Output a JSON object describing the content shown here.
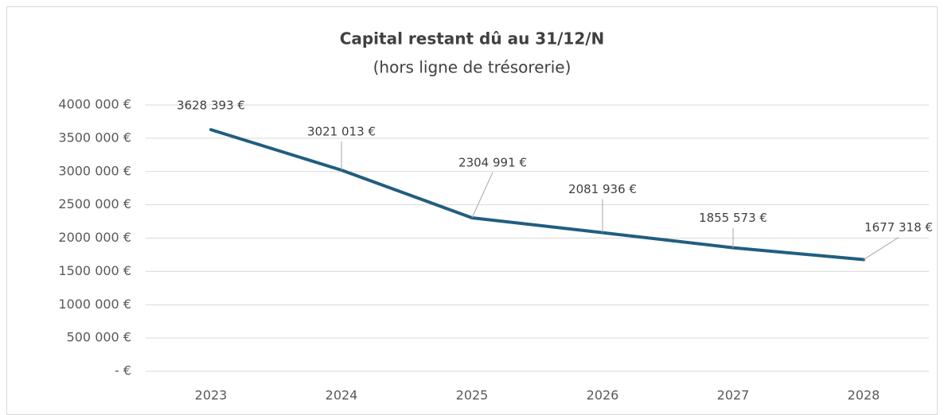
{
  "chart_data": {
    "type": "line",
    "title": "Capital restant dû au 31/12/N",
    "subtitle": "(hors ligne de trésorerie)",
    "categories": [
      "2023",
      "2024",
      "2025",
      "2026",
      "2027",
      "2028"
    ],
    "series": [
      {
        "name": "Capital restant dû",
        "color": "#205e80",
        "values": [
          3628393,
          3021013,
          2304991,
          2081936,
          1855573,
          1677318
        ],
        "value_labels": [
          "3628 393 €",
          "3021 013 €",
          "2304 991 €",
          "2081 936 €",
          "1855 573 €",
          "1677 318 €"
        ]
      }
    ],
    "ylim": [
      0,
      4000000
    ],
    "yticks": [
      {
        "value": 0,
        "label": "-   €"
      },
      {
        "value": 500000,
        "label": "500 000 €"
      },
      {
        "value": 1000000,
        "label": "1000 000 €"
      },
      {
        "value": 1500000,
        "label": "1500 000 €"
      },
      {
        "value": 2000000,
        "label": "2000 000 €"
      },
      {
        "value": 2500000,
        "label": "2500 000 €"
      },
      {
        "value": 3000000,
        "label": "3000 000 €"
      },
      {
        "value": 3500000,
        "label": "3500 000 €"
      },
      {
        "value": 4000000,
        "label": "4000 000 €"
      }
    ],
    "grid": true
  }
}
